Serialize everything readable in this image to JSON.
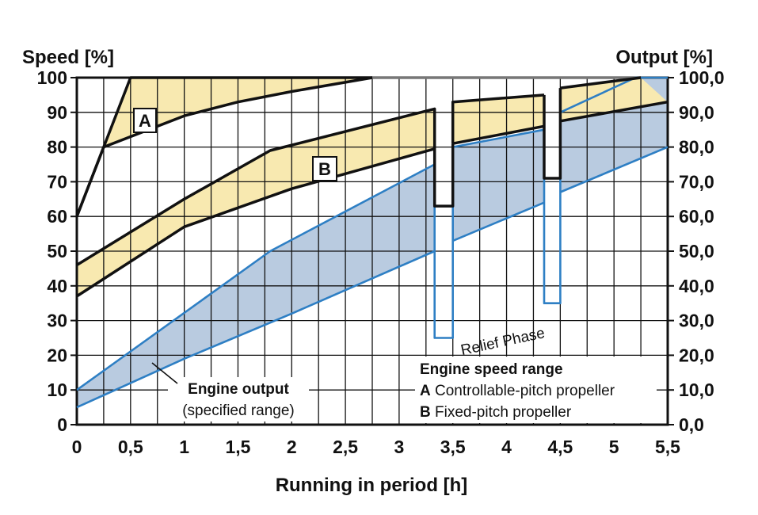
{
  "chart_data": {
    "type": "area",
    "xlabel": "Running in period [h]",
    "ylabel_left": "Speed [%]",
    "ylabel_right": "Output [%]",
    "xlim": [
      0,
      5.5
    ],
    "ylim": [
      0,
      100
    ],
    "grid": true,
    "x_ticks": [
      "0",
      "0,5",
      "1",
      "1,5",
      "2",
      "2,5",
      "3",
      "3,5",
      "4",
      "4,5",
      "5",
      "5,5"
    ],
    "y_ticks_left": [
      "0",
      "10",
      "20",
      "30",
      "40",
      "50",
      "60",
      "70",
      "80",
      "90",
      "100"
    ],
    "y_ticks_right": [
      "0,0",
      "10,0",
      "20,0",
      "30,0",
      "40,0",
      "50,0",
      "60,0",
      "70,0",
      "80,0",
      "90,0",
      "100,0"
    ],
    "colors": {
      "speed_fill": "#f8e9b0",
      "output_fill": "#b9cbe0",
      "output_line": "#2e7fc4",
      "speed_line": "#111111",
      "grid": "#111111",
      "max_line": "#777777"
    },
    "series": [
      {
        "name": "A Controllable-pitch propeller",
        "role": "speed band",
        "label": "A",
        "upper": [
          [
            0,
            60
          ],
          [
            0.5,
            100
          ],
          [
            2.75,
            100
          ]
        ],
        "lower": [
          [
            0,
            60
          ],
          [
            0.25,
            80
          ],
          [
            1,
            89
          ],
          [
            1.5,
            93
          ],
          [
            2,
            96
          ],
          [
            2.75,
            100
          ]
        ]
      },
      {
        "name": "B Fixed-pitch propeller",
        "role": "speed band",
        "label": "B",
        "segments": [
          {
            "upper": [
              [
                0,
                46
              ],
              [
                1,
                65
              ],
              [
                1.8,
                79
              ],
              [
                3.33,
                91
              ]
            ],
            "lower": [
              [
                0,
                37
              ],
              [
                1,
                57
              ],
              [
                2,
                68
              ],
              [
                3.33,
                79.5
              ]
            ]
          },
          {
            "upper": [
              [
                3.5,
                93
              ],
              [
                4.35,
                95
              ]
            ],
            "lower": [
              [
                3.5,
                81
              ],
              [
                4.35,
                86
              ]
            ]
          },
          {
            "upper": [
              [
                4.5,
                97
              ],
              [
                5.25,
                100
              ]
            ],
            "lower": [
              [
                4.5,
                87.5
              ],
              [
                5.5,
                93
              ]
            ]
          }
        ],
        "relief_levels": [
          {
            "x": [
              3.33,
              3.5
            ],
            "y": 63
          },
          {
            "x": [
              4.35,
              4.5
            ],
            "y": 71
          }
        ]
      },
      {
        "name": "Engine output (specified range)",
        "role": "output band",
        "segments": [
          {
            "upper": [
              [
                0,
                10
              ],
              [
                1.8,
                50
              ],
              [
                3.33,
                75
              ]
            ],
            "lower": [
              [
                0,
                5
              ],
              [
                1,
                19
              ],
              [
                2,
                32
              ],
              [
                3.33,
                50
              ]
            ]
          },
          {
            "upper": [
              [
                3.5,
                80
              ],
              [
                4.35,
                85
              ]
            ],
            "lower": [
              [
                3.5,
                53
              ],
              [
                4.35,
                64
              ]
            ]
          },
          {
            "upper": [
              [
                4.5,
                90
              ],
              [
                5.2,
                100
              ],
              [
                5.5,
                100
              ]
            ],
            "lower": [
              [
                4.5,
                67
              ],
              [
                5.5,
                80
              ]
            ]
          }
        ],
        "relief_levels": [
          {
            "x": [
              3.33,
              3.5
            ],
            "y": 25
          },
          {
            "x": [
              4.35,
              4.5
            ],
            "y": 35
          }
        ]
      }
    ],
    "annotations": {
      "relief": "Relief Phase",
      "output_label_line1": "Engine output",
      "output_label_line2": "(specified range)",
      "legend_title": "Engine speed range",
      "legend_a_key": "A",
      "legend_a_text": " Controllable-pitch propeller",
      "legend_b_key": "B",
      "legend_b_text": " Fixed-pitch propeller",
      "band_a_label": "A",
      "band_b_label": "B"
    }
  }
}
